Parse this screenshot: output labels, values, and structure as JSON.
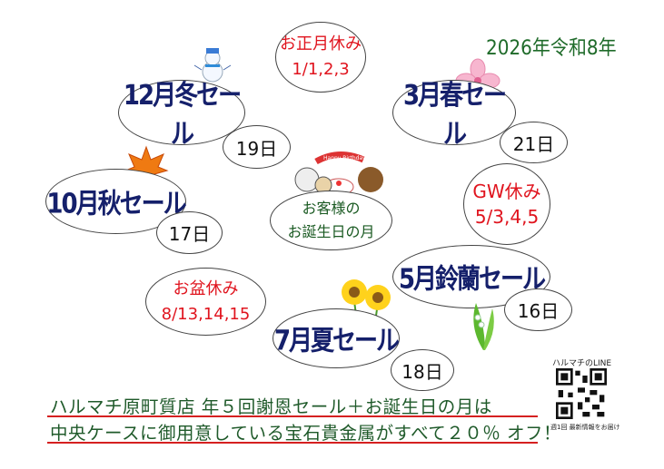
{
  "year_label": "2026年令和8年",
  "new_year": {
    "title": "お正月休み",
    "dates": "1/1,2,3"
  },
  "sales": [
    {
      "title": "12月冬セール",
      "day": "19日"
    },
    {
      "title": "3月春セール",
      "day": "21日"
    },
    {
      "title": "10月秋セール",
      "day": "17日"
    },
    {
      "title": "5月鈴蘭セール",
      "day": "16日"
    },
    {
      "title": "7月夏セール",
      "day": "18日"
    }
  ],
  "gw": {
    "title": "GW休み",
    "dates": "5/3,4,5"
  },
  "obon": {
    "title": "お盆休み",
    "dates": "8/13,14,15"
  },
  "birthday": {
    "line1": "お客様の",
    "line2": "お誕生日の月",
    "banner": "Happy Birthday"
  },
  "footer": {
    "line1": "ハルマチ原町質店 年５回謝恩セール＋お誕生日の月は",
    "line2": "中央ケースに御用意している宝石貴金属がすべて２０％ オフ！"
  },
  "line": {
    "label": "ハルマチのLINE",
    "caption": "週1回 最新情報をお届け"
  }
}
